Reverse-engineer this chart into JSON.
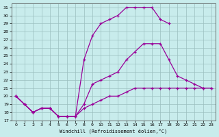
{
  "background_color": "#c8ecec",
  "grid_color": "#b0d0d0",
  "line_color": "#990099",
  "xlim": [
    -0.5,
    23.5
  ],
  "ylim": [
    17,
    31.5
  ],
  "xticks": [
    0,
    1,
    2,
    3,
    4,
    5,
    6,
    7,
    8,
    9,
    10,
    11,
    12,
    13,
    14,
    15,
    16,
    17,
    18,
    19,
    20,
    21,
    22,
    23
  ],
  "yticks": [
    17,
    18,
    19,
    20,
    21,
    22,
    23,
    24,
    25,
    26,
    27,
    28,
    29,
    30,
    31
  ],
  "xlabel": "Windchill (Refroidissement éolien,°C)",
  "curve_a_x": [
    0,
    1,
    2,
    3,
    4,
    5,
    6,
    7,
    8,
    9,
    10,
    11,
    12,
    13,
    14,
    15,
    16,
    17,
    18
  ],
  "curve_a_y": [
    20,
    19,
    18,
    18.5,
    18.5,
    17.5,
    17.5,
    17.5,
    24.5,
    27.5,
    29.0,
    29.5,
    30.0,
    31.0,
    31.0,
    31.0,
    31.0,
    29.5,
    29.0
  ],
  "curve_b_x": [
    0,
    1,
    2,
    3,
    4,
    5,
    6,
    7,
    8,
    9,
    10,
    11,
    12,
    13,
    14,
    15,
    16,
    17,
    18,
    19,
    20,
    21,
    22,
    23
  ],
  "curve_b_y": [
    20,
    19,
    18,
    18.5,
    18.5,
    17.5,
    17.5,
    17.5,
    19.0,
    21.5,
    22.0,
    22.5,
    23.0,
    24.5,
    25.5,
    26.5,
    26.5,
    26.5,
    24.5,
    22.5,
    22.0,
    21.5,
    21.0,
    21.0
  ],
  "curve_c_x": [
    0,
    1,
    2,
    3,
    4,
    5,
    6,
    7,
    8,
    9,
    10,
    11,
    12,
    13,
    14,
    15,
    16,
    17,
    18,
    19,
    20,
    21,
    22,
    23
  ],
  "curve_c_y": [
    20,
    19,
    18,
    18.5,
    18.5,
    17.5,
    17.5,
    17.5,
    18.5,
    19.0,
    19.5,
    20.0,
    20.0,
    20.5,
    21.0,
    21.0,
    21.0,
    21.0,
    21.0,
    21.0,
    21.0,
    21.0,
    21.0,
    21.0
  ]
}
